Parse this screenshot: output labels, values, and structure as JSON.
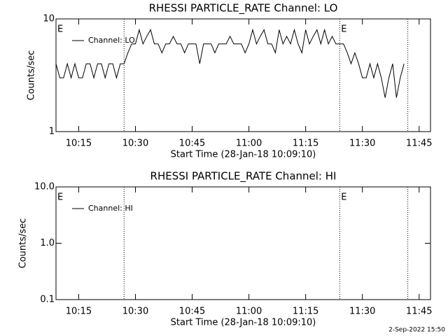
{
  "chart_data": [
    {
      "type": "line",
      "title": "RHESSI PARTICLE_RATE Channel: LO",
      "xlabel": "Start Time (28-Jan-18 10:09:10)",
      "ylabel": "Counts/sec",
      "log_y": true,
      "ylim": [
        1,
        10
      ],
      "yticks": [
        1,
        10
      ],
      "xlim": [
        "10:09",
        "11:48"
      ],
      "xticks": [
        "10:15",
        "10:30",
        "10:45",
        "11:00",
        "11:15",
        "11:30",
        "11:45"
      ],
      "vlines": [
        "10:27",
        "11:24",
        "11:42"
      ],
      "annotations": [
        {
          "text": "E",
          "x": "10:09"
        },
        {
          "text": "E",
          "x": "11:24"
        }
      ],
      "legend": "upper left",
      "x": [
        "10:09",
        "10:10",
        "10:11",
        "10:12",
        "10:13",
        "10:14",
        "10:15",
        "10:16",
        "10:17",
        "10:18",
        "10:19",
        "10:20",
        "10:21",
        "10:22",
        "10:23",
        "10:24",
        "10:25",
        "10:26",
        "10:27",
        "10:28",
        "10:29",
        "10:30",
        "10:31",
        "10:32",
        "10:33",
        "10:34",
        "10:35",
        "10:36",
        "10:37",
        "10:38",
        "10:39",
        "10:40",
        "10:41",
        "10:42",
        "10:43",
        "10:44",
        "10:45",
        "10:46",
        "10:47",
        "10:48",
        "10:49",
        "10:50",
        "10:51",
        "10:52",
        "10:53",
        "10:54",
        "10:55",
        "10:56",
        "10:57",
        "10:58",
        "10:59",
        "11:00",
        "11:01",
        "11:02",
        "11:03",
        "11:04",
        "11:05",
        "11:06",
        "11:07",
        "11:08",
        "11:09",
        "11:10",
        "11:11",
        "11:12",
        "11:13",
        "11:14",
        "11:15",
        "11:16",
        "11:17",
        "11:18",
        "11:19",
        "11:20",
        "11:21",
        "11:22",
        "11:23",
        "11:24",
        "11:25",
        "11:26",
        "11:27",
        "11:28",
        "11:29",
        "11:30",
        "11:31",
        "11:32",
        "11:33",
        "11:34",
        "11:35",
        "11:36",
        "11:37",
        "11:38",
        "11:39",
        "11:40",
        "11:41"
      ],
      "series": [
        {
          "name": "Channel: LO",
          "color": "#000000",
          "values": [
            4,
            3,
            3,
            4,
            3,
            4,
            3,
            3,
            4,
            4,
            3,
            4,
            4,
            3,
            4,
            4,
            3,
            4,
            4,
            5,
            6,
            6,
            8,
            6,
            7,
            8,
            6,
            6,
            5,
            6,
            6,
            7,
            6,
            6,
            5,
            6,
            6,
            6,
            4,
            6,
            6,
            6,
            5,
            6,
            6,
            6,
            7,
            6,
            6,
            6,
            5,
            6,
            8,
            6,
            7,
            8,
            6,
            6,
            5,
            8,
            6,
            7,
            6,
            8,
            6,
            5,
            8,
            6,
            7,
            8,
            6,
            8,
            6,
            7,
            6,
            6,
            6,
            5,
            4,
            5,
            4,
            3,
            3,
            4,
            3,
            4,
            3,
            2,
            3,
            4,
            2,
            3,
            4
          ]
        }
      ]
    },
    {
      "type": "line",
      "title": "RHESSI PARTICLE_RATE Channel: HI",
      "xlabel": "Start Time (28-Jan-18 10:09:10)",
      "ylabel": "Counts/sec",
      "log_y": true,
      "ylim": [
        0.1,
        10
      ],
      "yticks": [
        0.1,
        {
          "value": 1,
          "label": "1.0"
        },
        {
          "value": 10,
          "label": "10.0"
        }
      ],
      "xlim": [
        "10:09",
        "11:48"
      ],
      "xticks": [
        "10:15",
        "10:30",
        "10:45",
        "11:00",
        "11:15",
        "11:30",
        "11:45"
      ],
      "vlines": [
        "10:27",
        "11:24",
        "11:42"
      ],
      "annotations": [
        {
          "text": "E",
          "x": "10:09"
        },
        {
          "text": "E",
          "x": "11:24"
        }
      ],
      "legend": "upper left",
      "series": [
        {
          "name": "Channel: HI",
          "color": "#000000"
        }
      ]
    }
  ],
  "footer": "2-Sep-2022 15:50"
}
